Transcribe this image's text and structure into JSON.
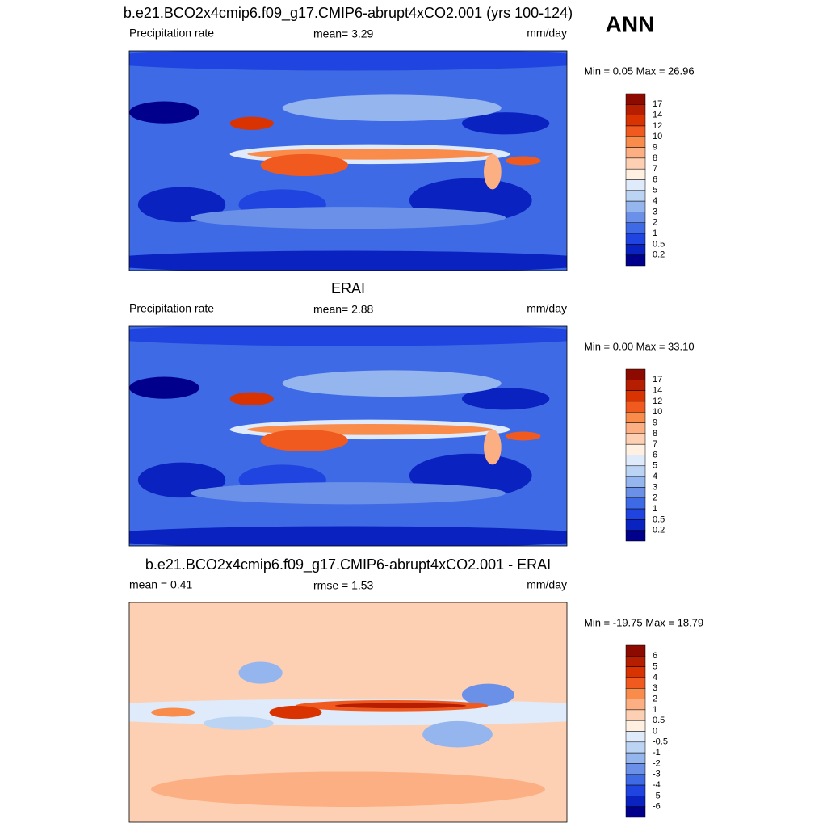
{
  "header": {
    "season": "ANN"
  },
  "panels": [
    {
      "title": "b.e21.BCO2x4cmip6.f09_g17.CMIP6-abrupt4xCO2.001 (yrs 100-124)",
      "left_label": "Precipitation rate",
      "center_label": "mean=   3.29",
      "right_label": "mm/day",
      "stats": "Min =   0.05 Max =  26.96",
      "colorbar_labels": [
        "17",
        "14",
        "12",
        "10",
        "9",
        "8",
        "7",
        "6",
        "5",
        "4",
        "3",
        "2",
        "1",
        "0.5",
        "0.2"
      ],
      "colors": [
        "#8c0a00",
        "#b51e00",
        "#d83300",
        "#f05a1e",
        "#f98c4a",
        "#fcaf82",
        "#fdd0b4",
        "#fff0e2",
        "#dfeafa",
        "#bcd4f4",
        "#94b5ee",
        "#6a90e8",
        "#3f6ae6",
        "#1f44e0",
        "#0a23c0",
        "#00008c"
      ]
    },
    {
      "title": "ERAI",
      "left_label": "Precipitation rate",
      "center_label": "mean=   2.88",
      "right_label": "mm/day",
      "stats": "Min =   0.00 Max =  33.10",
      "colorbar_labels": [
        "17",
        "14",
        "12",
        "10",
        "9",
        "8",
        "7",
        "6",
        "5",
        "4",
        "3",
        "2",
        "1",
        "0.5",
        "0.2"
      ],
      "colors": [
        "#8c0a00",
        "#b51e00",
        "#d83300",
        "#f05a1e",
        "#f98c4a",
        "#fcaf82",
        "#fdd0b4",
        "#fff0e2",
        "#dfeafa",
        "#bcd4f4",
        "#94b5ee",
        "#6a90e8",
        "#3f6ae6",
        "#1f44e0",
        "#0a23c0",
        "#00008c"
      ]
    },
    {
      "title": "b.e21.BCO2x4cmip6.f09_g17.CMIP6-abrupt4xCO2.001 - ERAI",
      "left_label": "mean =   0.41",
      "center_label": "rmse =   1.53",
      "right_label": "mm/day",
      "stats": "Min = -19.75 Max =  18.79",
      "colorbar_labels": [
        "6",
        "5",
        "4",
        "3",
        "2",
        "1",
        "0.5",
        "0",
        "-0.5",
        "-1",
        "-2",
        "-3",
        "-4",
        "-5",
        "-6"
      ],
      "colors": [
        "#8c0a00",
        "#b51e00",
        "#d83300",
        "#f05a1e",
        "#f98c4a",
        "#fcaf82",
        "#fdd0b4",
        "#fff0e2",
        "#dfeafa",
        "#bcd4f4",
        "#94b5ee",
        "#6a90e8",
        "#3f6ae6",
        "#1f44e0",
        "#0a23c0",
        "#00008c"
      ]
    }
  ]
}
